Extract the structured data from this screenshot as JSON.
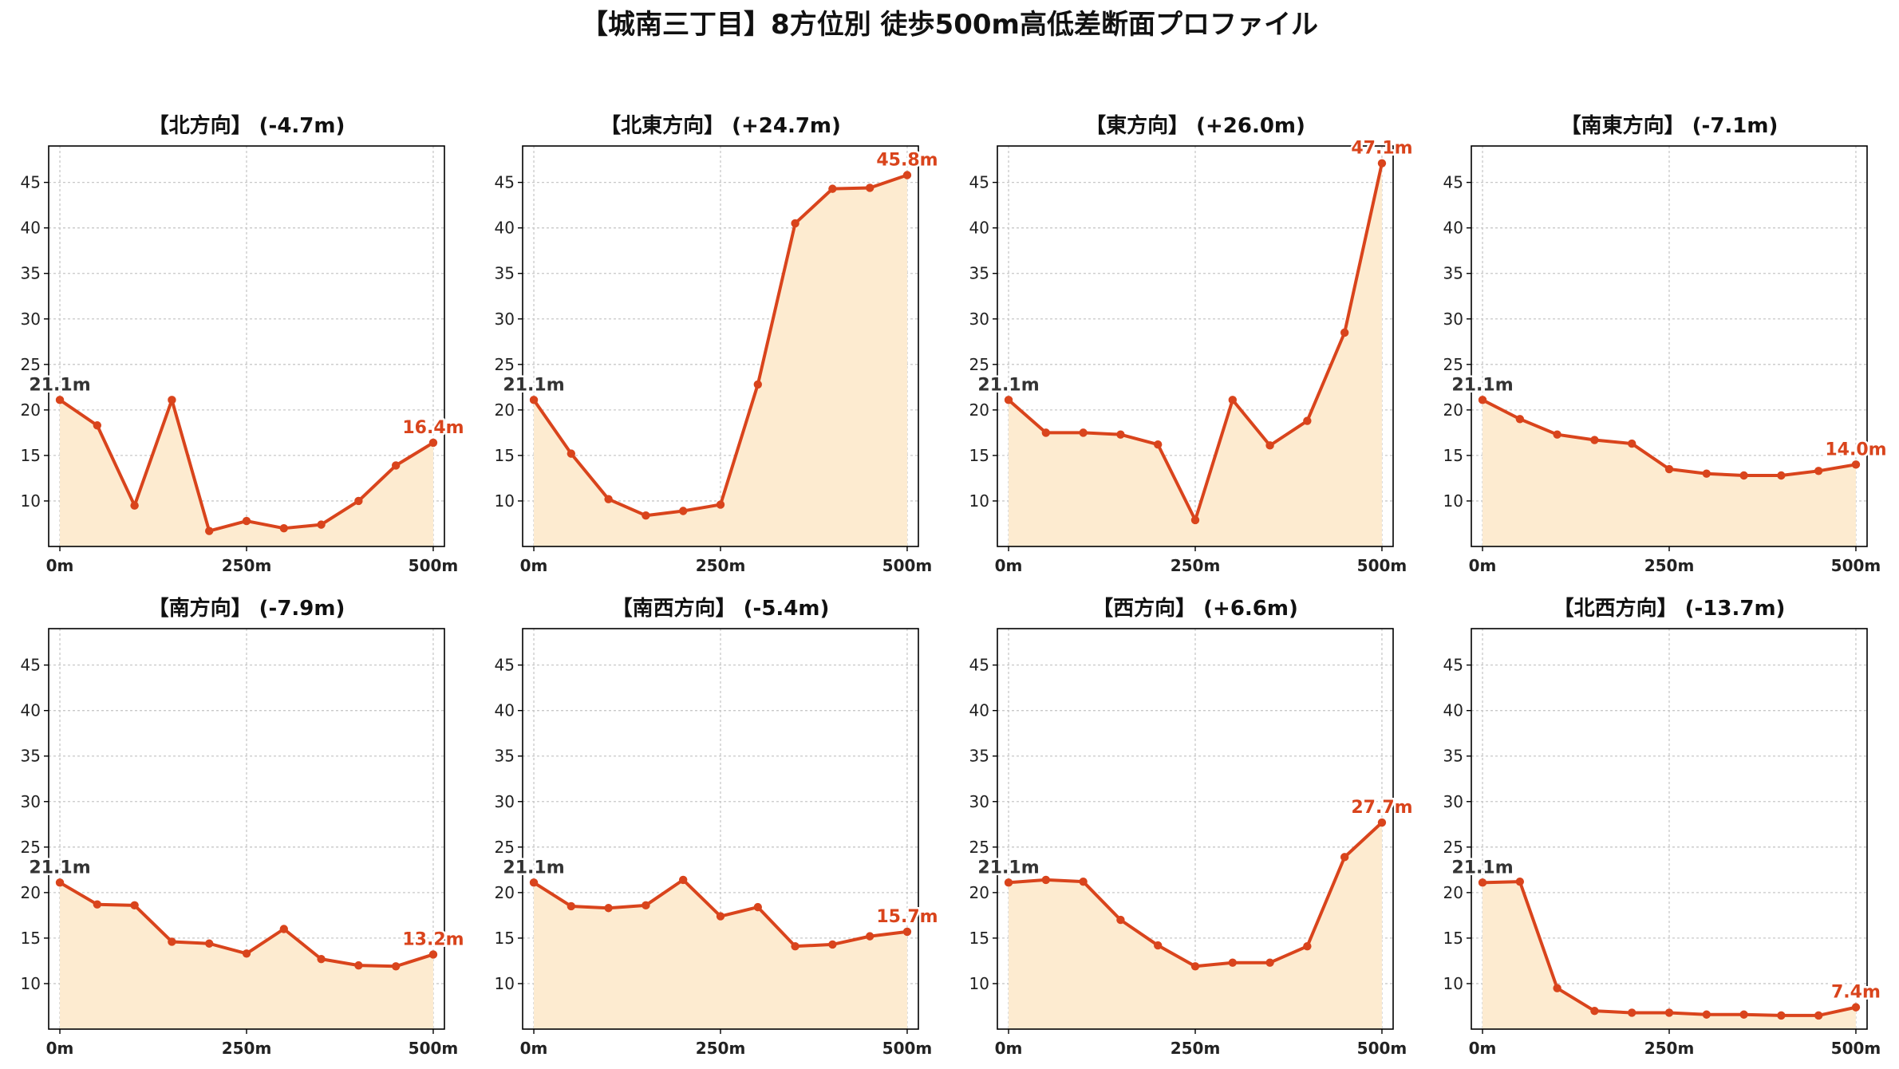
{
  "figure": {
    "title": "【城南三丁目】8方位別 徒歩500m高低差断面プロファイル"
  },
  "colors": {
    "line": "#d9441c",
    "fill": "#fdebd0",
    "start_label": "#333333",
    "end_label": "#d9441c",
    "grid": "#c8c8c8",
    "axis": "#000000"
  },
  "chart_data": [
    {
      "type": "area",
      "title": "【北方向】 (-4.7m)",
      "x": [
        0,
        50,
        100,
        150,
        200,
        250,
        300,
        350,
        400,
        450,
        500
      ],
      "series": [
        {
          "values": [
            21.1,
            18.3,
            9.5,
            21.1,
            6.7,
            7.8,
            7.0,
            7.4,
            10.0,
            13.9,
            16.4
          ]
        }
      ],
      "xticks": [
        0,
        250,
        500
      ],
      "xticklabels": [
        "0m",
        "250m",
        "500m"
      ],
      "yticks": [
        10,
        15,
        20,
        25,
        30,
        35,
        40,
        45
      ],
      "xlim": [
        -15,
        515
      ],
      "ylim": [
        5,
        49
      ],
      "grid": true,
      "start_label": "21.1m",
      "end_label": "16.4m"
    },
    {
      "type": "area",
      "title": "【北東方向】 (+24.7m)",
      "x": [
        0,
        50,
        100,
        150,
        200,
        250,
        300,
        350,
        400,
        450,
        500
      ],
      "series": [
        {
          "values": [
            21.1,
            15.2,
            10.2,
            8.4,
            8.9,
            9.6,
            22.8,
            40.5,
            44.3,
            44.4,
            45.8
          ]
        }
      ],
      "xticks": [
        0,
        250,
        500
      ],
      "xticklabels": [
        "0m",
        "250m",
        "500m"
      ],
      "yticks": [
        10,
        15,
        20,
        25,
        30,
        35,
        40,
        45
      ],
      "xlim": [
        -15,
        515
      ],
      "ylim": [
        5,
        49
      ],
      "grid": true,
      "start_label": "21.1m",
      "end_label": "45.8m"
    },
    {
      "type": "area",
      "title": "【東方向】 (+26.0m)",
      "x": [
        0,
        50,
        100,
        150,
        200,
        250,
        300,
        350,
        400,
        450,
        500
      ],
      "series": [
        {
          "values": [
            21.1,
            17.5,
            17.5,
            17.3,
            16.2,
            7.9,
            21.1,
            16.1,
            18.8,
            28.5,
            47.1
          ]
        }
      ],
      "xticks": [
        0,
        250,
        500
      ],
      "xticklabels": [
        "0m",
        "250m",
        "500m"
      ],
      "yticks": [
        10,
        15,
        20,
        25,
        30,
        35,
        40,
        45
      ],
      "xlim": [
        -15,
        515
      ],
      "ylim": [
        5,
        49
      ],
      "grid": true,
      "start_label": "21.1m",
      "end_label": "47.1m"
    },
    {
      "type": "area",
      "title": "【南東方向】 (-7.1m)",
      "x": [
        0,
        50,
        100,
        150,
        200,
        250,
        300,
        350,
        400,
        450,
        500
      ],
      "series": [
        {
          "values": [
            21.1,
            19.0,
            17.3,
            16.7,
            16.3,
            13.5,
            13.0,
            12.8,
            12.8,
            13.3,
            14.0
          ]
        }
      ],
      "xticks": [
        0,
        250,
        500
      ],
      "xticklabels": [
        "0m",
        "250m",
        "500m"
      ],
      "yticks": [
        10,
        15,
        20,
        25,
        30,
        35,
        40,
        45
      ],
      "xlim": [
        -15,
        515
      ],
      "ylim": [
        5,
        49
      ],
      "grid": true,
      "start_label": "21.1m",
      "end_label": "14.0m"
    },
    {
      "type": "area",
      "title": "【南方向】 (-7.9m)",
      "x": [
        0,
        50,
        100,
        150,
        200,
        250,
        300,
        350,
        400,
        450,
        500
      ],
      "series": [
        {
          "values": [
            21.1,
            18.7,
            18.6,
            14.6,
            14.4,
            13.3,
            16.0,
            12.7,
            12.0,
            11.9,
            13.2
          ]
        }
      ],
      "xticks": [
        0,
        250,
        500
      ],
      "xticklabels": [
        "0m",
        "250m",
        "500m"
      ],
      "yticks": [
        10,
        15,
        20,
        25,
        30,
        35,
        40,
        45
      ],
      "xlim": [
        -15,
        515
      ],
      "ylim": [
        5,
        49
      ],
      "grid": true,
      "start_label": "21.1m",
      "end_label": "13.2m"
    },
    {
      "type": "area",
      "title": "【南西方向】 (-5.4m)",
      "x": [
        0,
        50,
        100,
        150,
        200,
        250,
        300,
        350,
        400,
        450,
        500
      ],
      "series": [
        {
          "values": [
            21.1,
            18.5,
            18.3,
            18.6,
            21.4,
            17.4,
            18.4,
            14.1,
            14.3,
            15.2,
            15.7
          ]
        }
      ],
      "xticks": [
        0,
        250,
        500
      ],
      "xticklabels": [
        "0m",
        "250m",
        "500m"
      ],
      "yticks": [
        10,
        15,
        20,
        25,
        30,
        35,
        40,
        45
      ],
      "xlim": [
        -15,
        515
      ],
      "ylim": [
        5,
        49
      ],
      "grid": true,
      "start_label": "21.1m",
      "end_label": "15.7m"
    },
    {
      "type": "area",
      "title": "【西方向】 (+6.6m)",
      "x": [
        0,
        50,
        100,
        150,
        200,
        250,
        300,
        350,
        400,
        450,
        500
      ],
      "series": [
        {
          "values": [
            21.1,
            21.4,
            21.2,
            17.0,
            14.2,
            11.9,
            12.3,
            12.3,
            14.1,
            23.9,
            27.7
          ]
        }
      ],
      "xticks": [
        0,
        250,
        500
      ],
      "xticklabels": [
        "0m",
        "250m",
        "500m"
      ],
      "yticks": [
        10,
        15,
        20,
        25,
        30,
        35,
        40,
        45
      ],
      "xlim": [
        -15,
        515
      ],
      "ylim": [
        5,
        49
      ],
      "grid": true,
      "start_label": "21.1m",
      "end_label": "27.7m"
    },
    {
      "type": "area",
      "title": "【北西方向】 (-13.7m)",
      "x": [
        0,
        50,
        100,
        150,
        200,
        250,
        300,
        350,
        400,
        450,
        500
      ],
      "series": [
        {
          "values": [
            21.1,
            21.2,
            9.5,
            7.0,
            6.8,
            6.8,
            6.6,
            6.6,
            6.5,
            6.5,
            7.4
          ]
        }
      ],
      "xticks": [
        0,
        250,
        500
      ],
      "xticklabels": [
        "0m",
        "250m",
        "500m"
      ],
      "yticks": [
        10,
        15,
        20,
        25,
        30,
        35,
        40,
        45
      ],
      "xlim": [
        -15,
        515
      ],
      "ylim": [
        5,
        49
      ],
      "grid": true,
      "start_label": "21.1m",
      "end_label": "7.4m"
    }
  ]
}
